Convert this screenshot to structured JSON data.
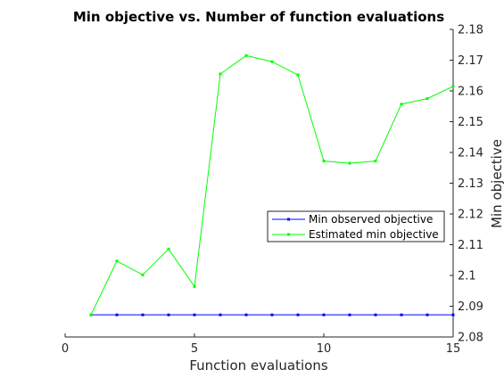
{
  "chart_data": {
    "type": "line",
    "title": "Min objective vs. Number of function evaluations",
    "xlabel": "Function evaluations",
    "ylabel": "Min objective",
    "xlim": [
      0,
      15
    ],
    "ylim": [
      2.08,
      2.18
    ],
    "x_ticks": [
      0,
      5,
      10,
      15
    ],
    "x_tick_labels": [
      "0",
      "5",
      "10",
      "15"
    ],
    "y_ticks": [
      2.08,
      2.09,
      2.1,
      2.11,
      2.12,
      2.13,
      2.14,
      2.15,
      2.16,
      2.17,
      2.18
    ],
    "y_tick_labels": [
      "2.08",
      "2.09",
      "2.1",
      "2.11",
      "2.12",
      "2.13",
      "2.14",
      "2.15",
      "2.16",
      "2.17",
      "2.18"
    ],
    "y_axis_position": "right",
    "grid": false,
    "legend_position": "center-right",
    "series": [
      {
        "name": "Min observed objective",
        "color": "#0000ff",
        "marker": "square",
        "x": [
          1,
          2,
          3,
          4,
          5,
          6,
          7,
          8,
          9,
          10,
          11,
          12,
          13,
          14,
          15
        ],
        "values": [
          2.0872,
          2.0872,
          2.0872,
          2.0872,
          2.0872,
          2.0872,
          2.0872,
          2.0872,
          2.0872,
          2.0872,
          2.0872,
          2.0872,
          2.0872,
          2.0872,
          2.0872
        ]
      },
      {
        "name": "Estimated min objective",
        "color": "#00ff00",
        "marker": "square",
        "x": [
          1,
          2,
          3,
          4,
          5,
          6,
          7,
          8,
          9,
          10,
          11,
          12,
          13,
          14,
          15
        ],
        "values": [
          2.0872,
          2.1047,
          2.1002,
          2.1086,
          2.0964,
          2.1655,
          2.1715,
          2.1695,
          2.1652,
          2.1372,
          2.1365,
          2.1372,
          2.1557,
          2.1575,
          2.1615
        ]
      }
    ]
  }
}
